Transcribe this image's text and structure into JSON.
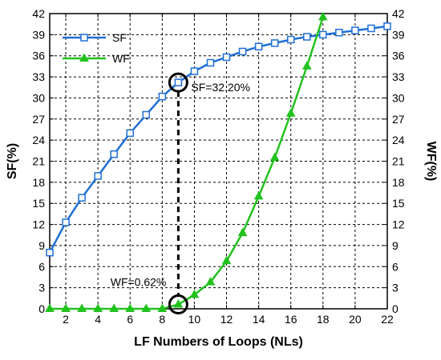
{
  "chart_data": {
    "type": "line",
    "xlabel": "LF Numbers of Loops (NLs)",
    "ylabel_left": "SF(%)",
    "ylabel_right": "WF(%)",
    "xlim": [
      1,
      22
    ],
    "ylim": [
      0,
      42
    ],
    "x_ticks": [
      "2",
      "4",
      "6",
      "8",
      "10",
      "12",
      "14",
      "16",
      "18",
      "20",
      "22"
    ],
    "y_ticks": [
      "0",
      "3",
      "6",
      "9",
      "12",
      "15",
      "18",
      "21",
      "24",
      "27",
      "30",
      "33",
      "36",
      "39",
      "42"
    ],
    "grid": true,
    "legend_position": "top-left",
    "series": [
      {
        "name": "SF",
        "axis": "left",
        "color": "#1f6fd6",
        "marker": "square",
        "x": [
          1,
          2,
          3,
          4,
          5,
          6,
          7,
          8,
          9,
          10,
          11,
          12,
          13,
          14,
          15,
          16,
          17,
          18,
          19,
          20,
          21,
          22
        ],
        "y": [
          8.0,
          12.3,
          15.8,
          18.9,
          22.0,
          25.0,
          27.6,
          30.2,
          32.2,
          33.8,
          35.0,
          35.8,
          36.6,
          37.3,
          37.8,
          38.3,
          38.7,
          39.0,
          39.3,
          39.6,
          39.9,
          40.2
        ]
      },
      {
        "name": "WF",
        "axis": "right",
        "color": "#22c21e",
        "marker": "triangle",
        "x": [
          1,
          2,
          3,
          4,
          5,
          6,
          7,
          8,
          9,
          10,
          11,
          12,
          13,
          14,
          15,
          16,
          17,
          18
        ],
        "y": [
          0,
          0,
          0,
          0,
          0,
          0,
          0,
          0,
          0.62,
          2.0,
          3.8,
          6.8,
          10.8,
          16.0,
          21.5,
          27.8,
          34.5,
          41.5
        ]
      }
    ],
    "annotations": [
      {
        "text": "SF=32.20%",
        "x": 9,
        "y": 32.2,
        "axis": "left"
      },
      {
        "text": "WF=0.62%",
        "x": 9,
        "y": 0.62,
        "axis": "right"
      }
    ]
  }
}
